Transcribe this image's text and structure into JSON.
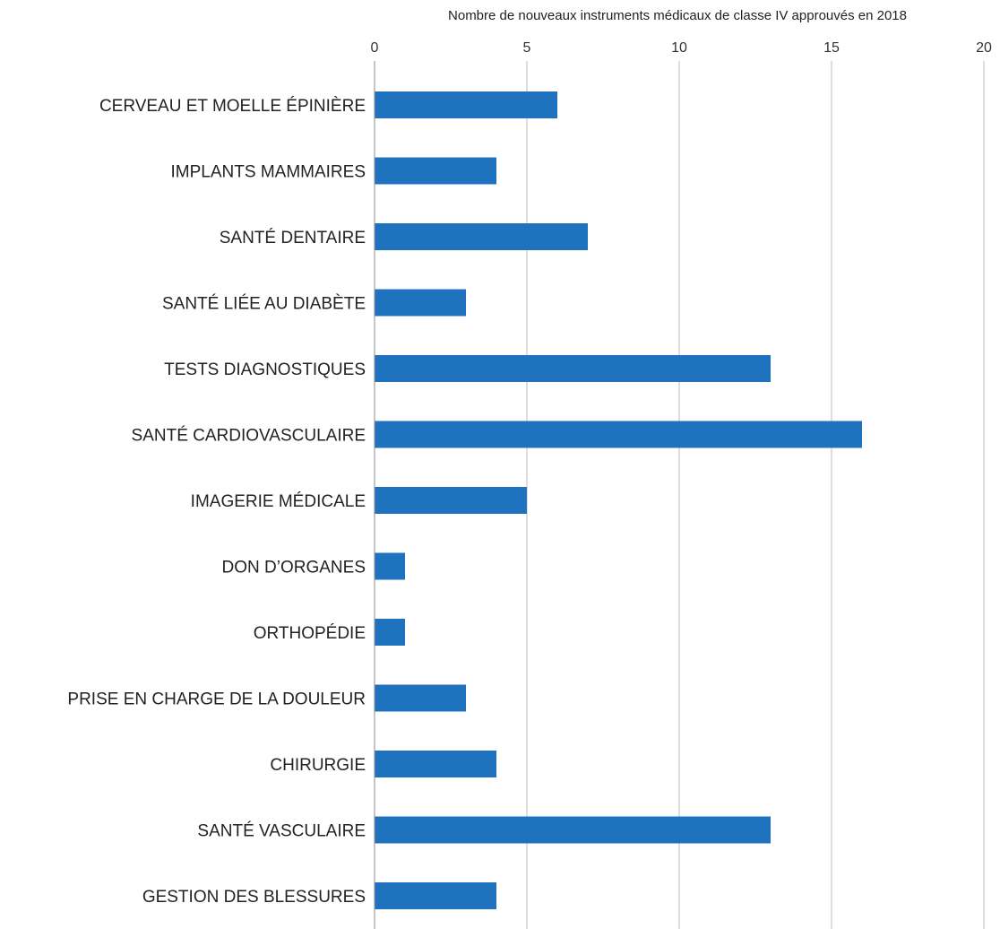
{
  "chart_data": {
    "type": "bar",
    "orientation": "horizontal",
    "title": "",
    "xlabel": "Nombre de nouveaux instruments médicaux de classe IV approuvés en 2018",
    "ylabel": "",
    "xlim": [
      0,
      20
    ],
    "x_ticks": [
      0,
      5,
      10,
      15,
      20
    ],
    "x_axis_position": "top",
    "grid": true,
    "legend": "none",
    "bar_color": "#1f73be",
    "categories": [
      "CERVEAU ET MOELLE ÉPINIÈRE",
      "IMPLANTS MAMMAIRES",
      "SANTÉ DENTAIRE",
      "SANTÉ LIÉE AU DIABÈTE",
      "TESTS DIAGNOSTIQUES",
      "SANTÉ CARDIOVASCULAIRE",
      "IMAGERIE MÉDICALE",
      "DON D’ORGANES",
      "ORTHOPÉDIE",
      "PRISE EN CHARGE DE LA DOULEUR",
      "CHIRURGIE",
      "SANTÉ VASCULAIRE",
      "GESTION DES BLESSURES"
    ],
    "values": [
      6,
      4,
      7,
      3,
      13,
      16,
      5,
      1,
      1,
      3,
      4,
      13,
      4
    ]
  }
}
